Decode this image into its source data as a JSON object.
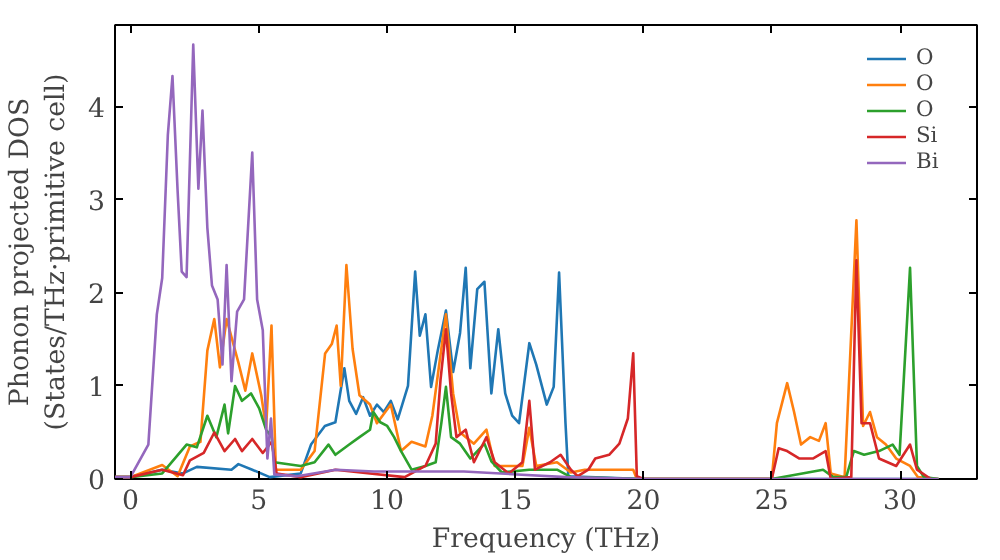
{
  "chart_data": {
    "type": "line",
    "xlabel": "Frequency (THz)",
    "ylabel": "Phonon projected DOS\n(States/THz·primitive cell)",
    "xlim": [
      -0.6,
      33
    ],
    "ylim": [
      0,
      4.88
    ],
    "xticks": [
      0,
      5,
      10,
      15,
      20,
      25,
      30
    ],
    "yticks": [
      0,
      1,
      2,
      3,
      4
    ],
    "legend": "top right",
    "grid": false,
    "series": [
      {
        "name": "O",
        "color": "#1f77b4",
        "x": [
          -0.6,
          0,
          1.24,
          2.05,
          2.59,
          3.94,
          4.21,
          4.75,
          5.43,
          6.64,
          7.04,
          7.58,
          7.99,
          8.34,
          8.53,
          8.8,
          9.07,
          9.34,
          9.61,
          9.88,
          10.15,
          10.42,
          10.82,
          11.1,
          11.28,
          11.5,
          11.72,
          11.98,
          12.3,
          12.58,
          12.85,
          13.07,
          13.25,
          13.52,
          13.8,
          14.07,
          14.34,
          14.61,
          14.88,
          15.15,
          15.55,
          15.82,
          16.23,
          16.5,
          16.71,
          16.96,
          17.07,
          20,
          25,
          31.5
        ],
        "values": [
          0.02,
          0.02,
          0.1,
          0.06,
          0.13,
          0.1,
          0.16,
          0.1,
          0.02,
          0.06,
          0.37,
          0.57,
          0.61,
          1.19,
          0.84,
          0.7,
          0.88,
          0.68,
          0.8,
          0.72,
          0.84,
          0.64,
          1.0,
          2.23,
          1.54,
          1.77,
          0.99,
          1.38,
          1.81,
          1.15,
          1.57,
          2.27,
          1.19,
          2.04,
          2.12,
          0.92,
          1.61,
          0.92,
          0.68,
          0.6,
          1.46,
          1.23,
          0.8,
          0.99,
          2.22,
          0.6,
          0.03,
          0,
          0,
          0
        ]
      },
      {
        "name": "O",
        "color": "#ff7f0e",
        "x": [
          -0.6,
          0,
          1.24,
          1.84,
          2.32,
          2.73,
          3.0,
          3.27,
          3.49,
          3.75,
          4.21,
          4.48,
          4.75,
          5.1,
          5.29,
          5.5,
          5.67,
          6.64,
          7.18,
          7.59,
          7.85,
          8.04,
          8.2,
          8.42,
          8.66,
          8.93,
          9.34,
          9.61,
          10.15,
          10.55,
          10.96,
          11.5,
          11.77,
          12.3,
          12.58,
          12.85,
          13.39,
          13.88,
          14.2,
          15.28,
          15.55,
          15.82,
          16.63,
          17.17,
          17.71,
          19.6,
          19.74,
          25.0,
          25.2,
          25.6,
          25.87,
          26.14,
          26.5,
          26.84,
          27.1,
          27.3,
          27.84,
          28.3,
          28.56,
          28.83,
          29.1,
          29.45,
          29.85,
          30.39,
          30.7,
          31.5
        ],
        "values": [
          0.02,
          0.02,
          0.15,
          0.03,
          0.35,
          0.4,
          1.38,
          1.72,
          1.2,
          1.72,
          1.25,
          0.95,
          1.35,
          0.9,
          0.55,
          1.65,
          0.1,
          0.1,
          0.3,
          1.35,
          1.45,
          1.65,
          1.0,
          2.3,
          1.4,
          0.9,
          0.8,
          0.6,
          0.8,
          0.3,
          0.4,
          0.35,
          0.68,
          1.77,
          0.92,
          0.5,
          0.38,
          0.53,
          0.14,
          0.14,
          0.55,
          0.14,
          0.18,
          0.07,
          0.1,
          0.1,
          0,
          0,
          0.6,
          1.03,
          0.72,
          0.37,
          0.45,
          0.41,
          0.6,
          0.06,
          0.02,
          2.78,
          0.57,
          0.72,
          0.45,
          0.37,
          0.22,
          0.14,
          0.02,
          0
        ]
      },
      {
        "name": "O",
        "color": "#2ca02c",
        "x": [
          -0.6,
          0,
          1.24,
          2.19,
          2.59,
          3.0,
          3.35,
          3.67,
          3.81,
          4.08,
          4.35,
          4.7,
          5.02,
          5.29,
          5.51,
          5.61,
          6.64,
          7.18,
          7.72,
          7.99,
          8.53,
          8.93,
          9.34,
          9.47,
          9.74,
          10.01,
          10.28,
          10.55,
          10.96,
          11.5,
          11.9,
          12.12,
          12.3,
          12.5,
          12.85,
          13.25,
          13.8,
          14.07,
          14.48,
          15.55,
          16.63,
          17.17,
          20,
          25.0,
          27.0,
          27.4,
          27.9,
          28.2,
          28.6,
          29.18,
          29.71,
          29.98,
          30.39,
          30.66,
          30.93,
          31.5
        ],
        "values": [
          0.02,
          0.02,
          0.06,
          0.37,
          0.34,
          0.68,
          0.45,
          0.8,
          0.49,
          1.0,
          0.84,
          0.92,
          0.76,
          0.53,
          0.45,
          0.18,
          0.14,
          0.18,
          0.37,
          0.26,
          0.37,
          0.45,
          0.53,
          0.72,
          0.61,
          0.57,
          0.45,
          0.3,
          0.1,
          0.14,
          0.18,
          0.6,
          0.99,
          0.45,
          0.38,
          0.22,
          0.38,
          0.19,
          0.07,
          0.1,
          0.1,
          0.02,
          0,
          0,
          0.1,
          0.02,
          0.02,
          0.3,
          0.26,
          0.3,
          0.37,
          0.26,
          2.27,
          0.14,
          0.02,
          0
        ]
      },
      {
        "name": "Si",
        "color": "#d62728",
        "x": [
          -0.6,
          0,
          1.24,
          2.05,
          2.32,
          2.86,
          3.27,
          3.67,
          4.08,
          4.35,
          4.75,
          5.16,
          5.51,
          5.7,
          6.64,
          7.99,
          9.34,
          10.69,
          11.5,
          11.9,
          12.09,
          12.3,
          12.5,
          12.71,
          13.07,
          13.39,
          13.88,
          14.2,
          14.75,
          15.28,
          15.55,
          15.77,
          16.36,
          16.77,
          17.17,
          17.44,
          17.85,
          18.12,
          18.66,
          19.06,
          19.39,
          19.6,
          19.74,
          20.0,
          25.0,
          25.27,
          25.6,
          26.08,
          26.6,
          27.1,
          27.3,
          28.1,
          28.3,
          28.5,
          28.83,
          29.18,
          29.85,
          30.39,
          30.66,
          31.2
        ],
        "values": [
          0.02,
          0.02,
          0.1,
          0.04,
          0.2,
          0.28,
          0.5,
          0.3,
          0.43,
          0.3,
          0.43,
          0.28,
          0.4,
          0.06,
          0.02,
          0.1,
          0.06,
          0.02,
          0.14,
          0.38,
          1.07,
          1.61,
          0.92,
          0.45,
          0.53,
          0.18,
          0.45,
          0.18,
          0.06,
          0.18,
          0.84,
          0.1,
          0.18,
          0.26,
          0.1,
          0.03,
          0.1,
          0.22,
          0.26,
          0.38,
          0.65,
          1.35,
          0.03,
          0,
          0,
          0.33,
          0.3,
          0.22,
          0.22,
          0.3,
          0,
          0.02,
          2.35,
          0.6,
          0.6,
          0.22,
          0.14,
          0.37,
          0.1,
          0
        ]
      },
      {
        "name": "Bi",
        "color": "#9467bd",
        "x": [
          -0.6,
          0,
          0.7,
          1.03,
          1.24,
          1.46,
          1.64,
          1.84,
          2.0,
          2.19,
          2.45,
          2.65,
          2.81,
          3.0,
          3.18,
          3.4,
          3.59,
          3.75,
          3.94,
          4.16,
          4.43,
          4.75,
          4.94,
          5.16,
          5.34,
          5.48,
          5.61,
          6.5,
          8.0,
          9.5,
          13.0,
          17.0,
          20,
          25,
          31.5
        ],
        "values": [
          0.02,
          0.02,
          0.37,
          1.77,
          2.16,
          3.7,
          4.33,
          3.1,
          2.23,
          2.17,
          4.67,
          3.12,
          3.96,
          2.7,
          2.08,
          1.93,
          1.23,
          2.3,
          1.05,
          1.8,
          1.93,
          3.51,
          1.93,
          1.6,
          0.22,
          0.65,
          0.05,
          0.03,
          0.1,
          0.08,
          0.08,
          0.02,
          0,
          0,
          0
        ]
      }
    ]
  }
}
